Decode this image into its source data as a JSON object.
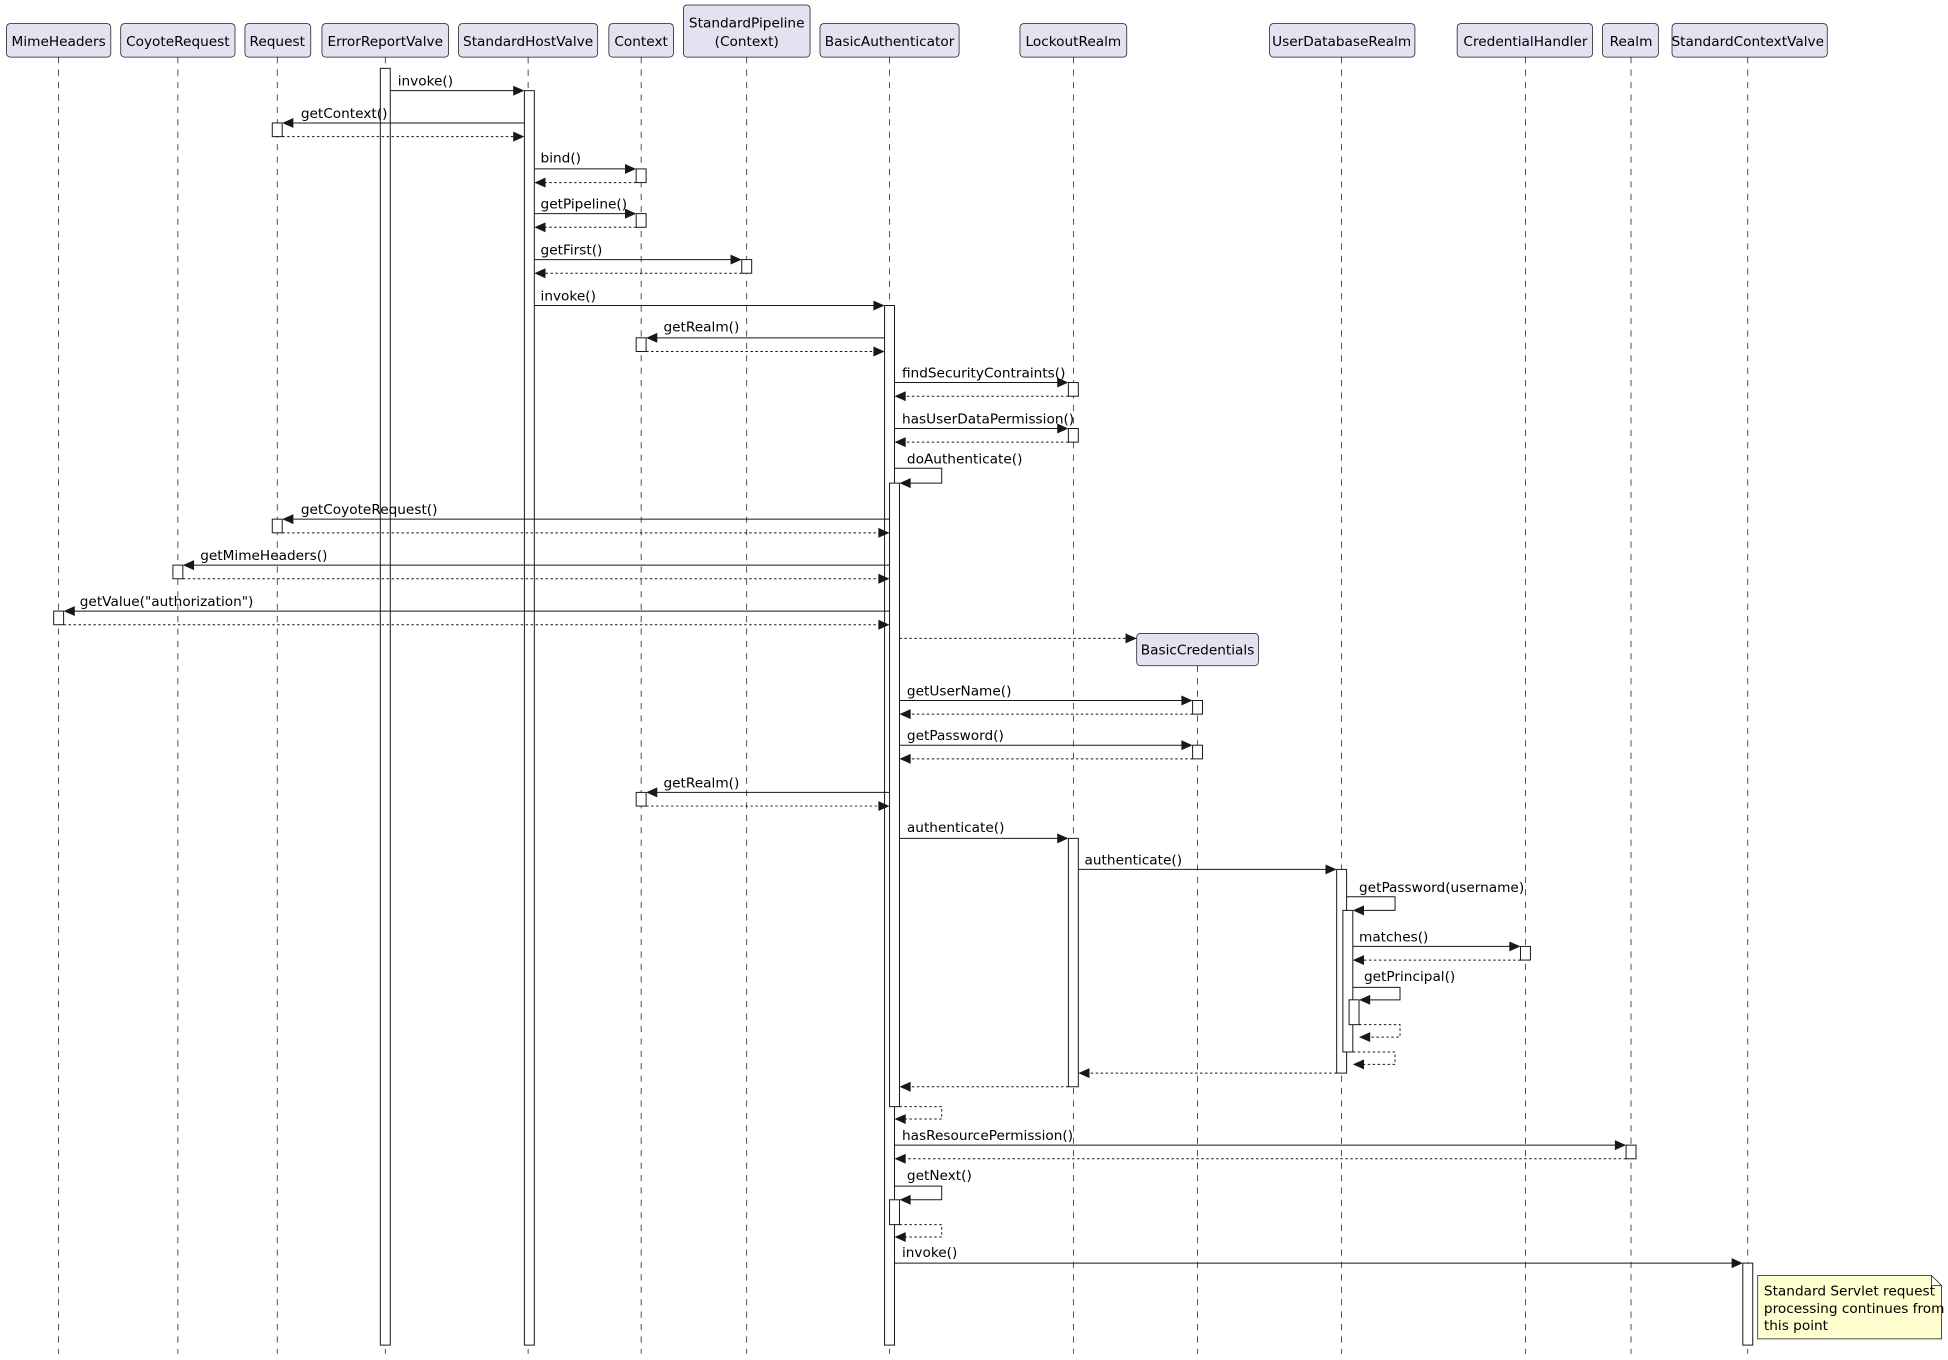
{
  "participants": [
    "MimeHeaders",
    "CoyoteRequest",
    "Request",
    "ErrorReportValve",
    "StandardHostValve",
    "Context",
    [
      "StandardPipeline",
      "(Context)"
    ],
    "BasicAuthenticator",
    "LockoutRealm",
    "UserDatabaseRealm",
    "CredentialHandler",
    "Realm",
    "StandardContextValve",
    "BasicCredentials"
  ],
  "messages": [
    "invoke()",
    "getContext()",
    "bind()",
    "getPipeline()",
    "getFirst()",
    "invoke()",
    "getRealm()",
    "findSecurityContraints()",
    "hasUserDataPermission()",
    "doAuthenticate()",
    "getCoyoteRequest()",
    "getMimeHeaders()",
    "getValue(\"authorization\")",
    "getUserName()",
    "getPassword()",
    "getRealm()",
    "authenticate()",
    "authenticate()",
    "getPassword(username)",
    "matches()",
    "getPrincipal()",
    "hasResourcePermission()",
    "getNext()",
    "invoke()"
  ],
  "note": [
    "Standard Servlet request",
    "processing continues from",
    "this point"
  ]
}
